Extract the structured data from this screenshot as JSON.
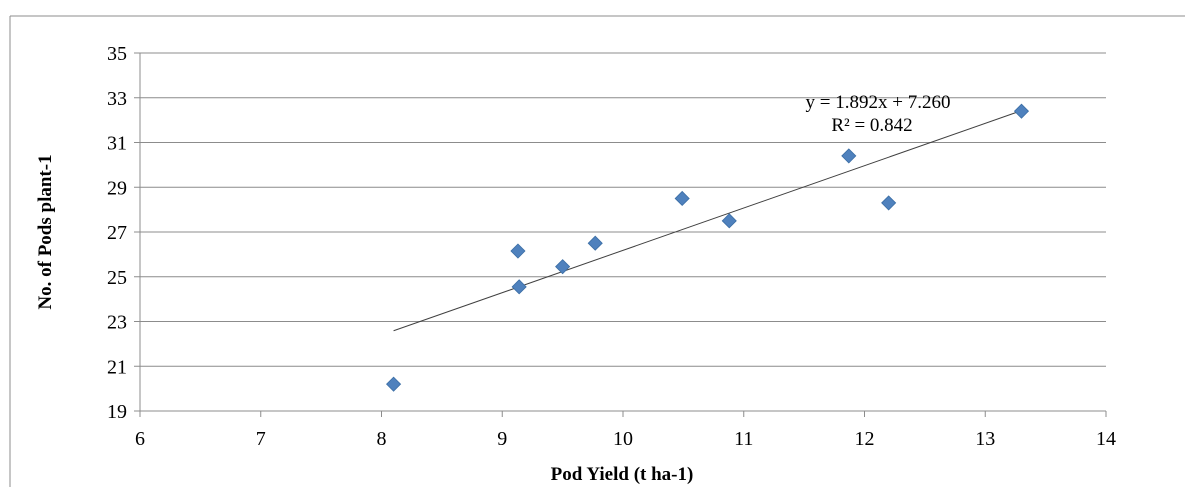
{
  "chart_data": {
    "type": "scatter",
    "title": "",
    "xlabel": "Pod Yield (t ha-1)",
    "ylabel": "No. of Pods plant-1",
    "xlim": [
      6,
      14
    ],
    "ylim": [
      19,
      35
    ],
    "xticks": [
      6,
      7,
      8,
      9,
      10,
      11,
      12,
      13,
      14
    ],
    "yticks": [
      19,
      21,
      23,
      25,
      27,
      29,
      31,
      33,
      35
    ],
    "grid": true,
    "legend": "none",
    "series": [
      {
        "marker": "diamond",
        "color": "#4f81bd",
        "x": [
          8.1,
          9.13,
          9.14,
          9.5,
          9.77,
          10.49,
          10.88,
          11.87,
          12.2,
          13.3
        ],
        "y": [
          20.2,
          26.15,
          24.55,
          25.45,
          26.5,
          28.5,
          27.5,
          30.4,
          28.3,
          32.4
        ]
      }
    ],
    "trendline": {
      "type": "linear",
      "slope": 1.892,
      "intercept": 7.26,
      "x_range": [
        8.1,
        13.3
      ],
      "color": "#404040",
      "equation": "y = 1.892x + 7.260",
      "r2": "R² = 0.842"
    }
  }
}
